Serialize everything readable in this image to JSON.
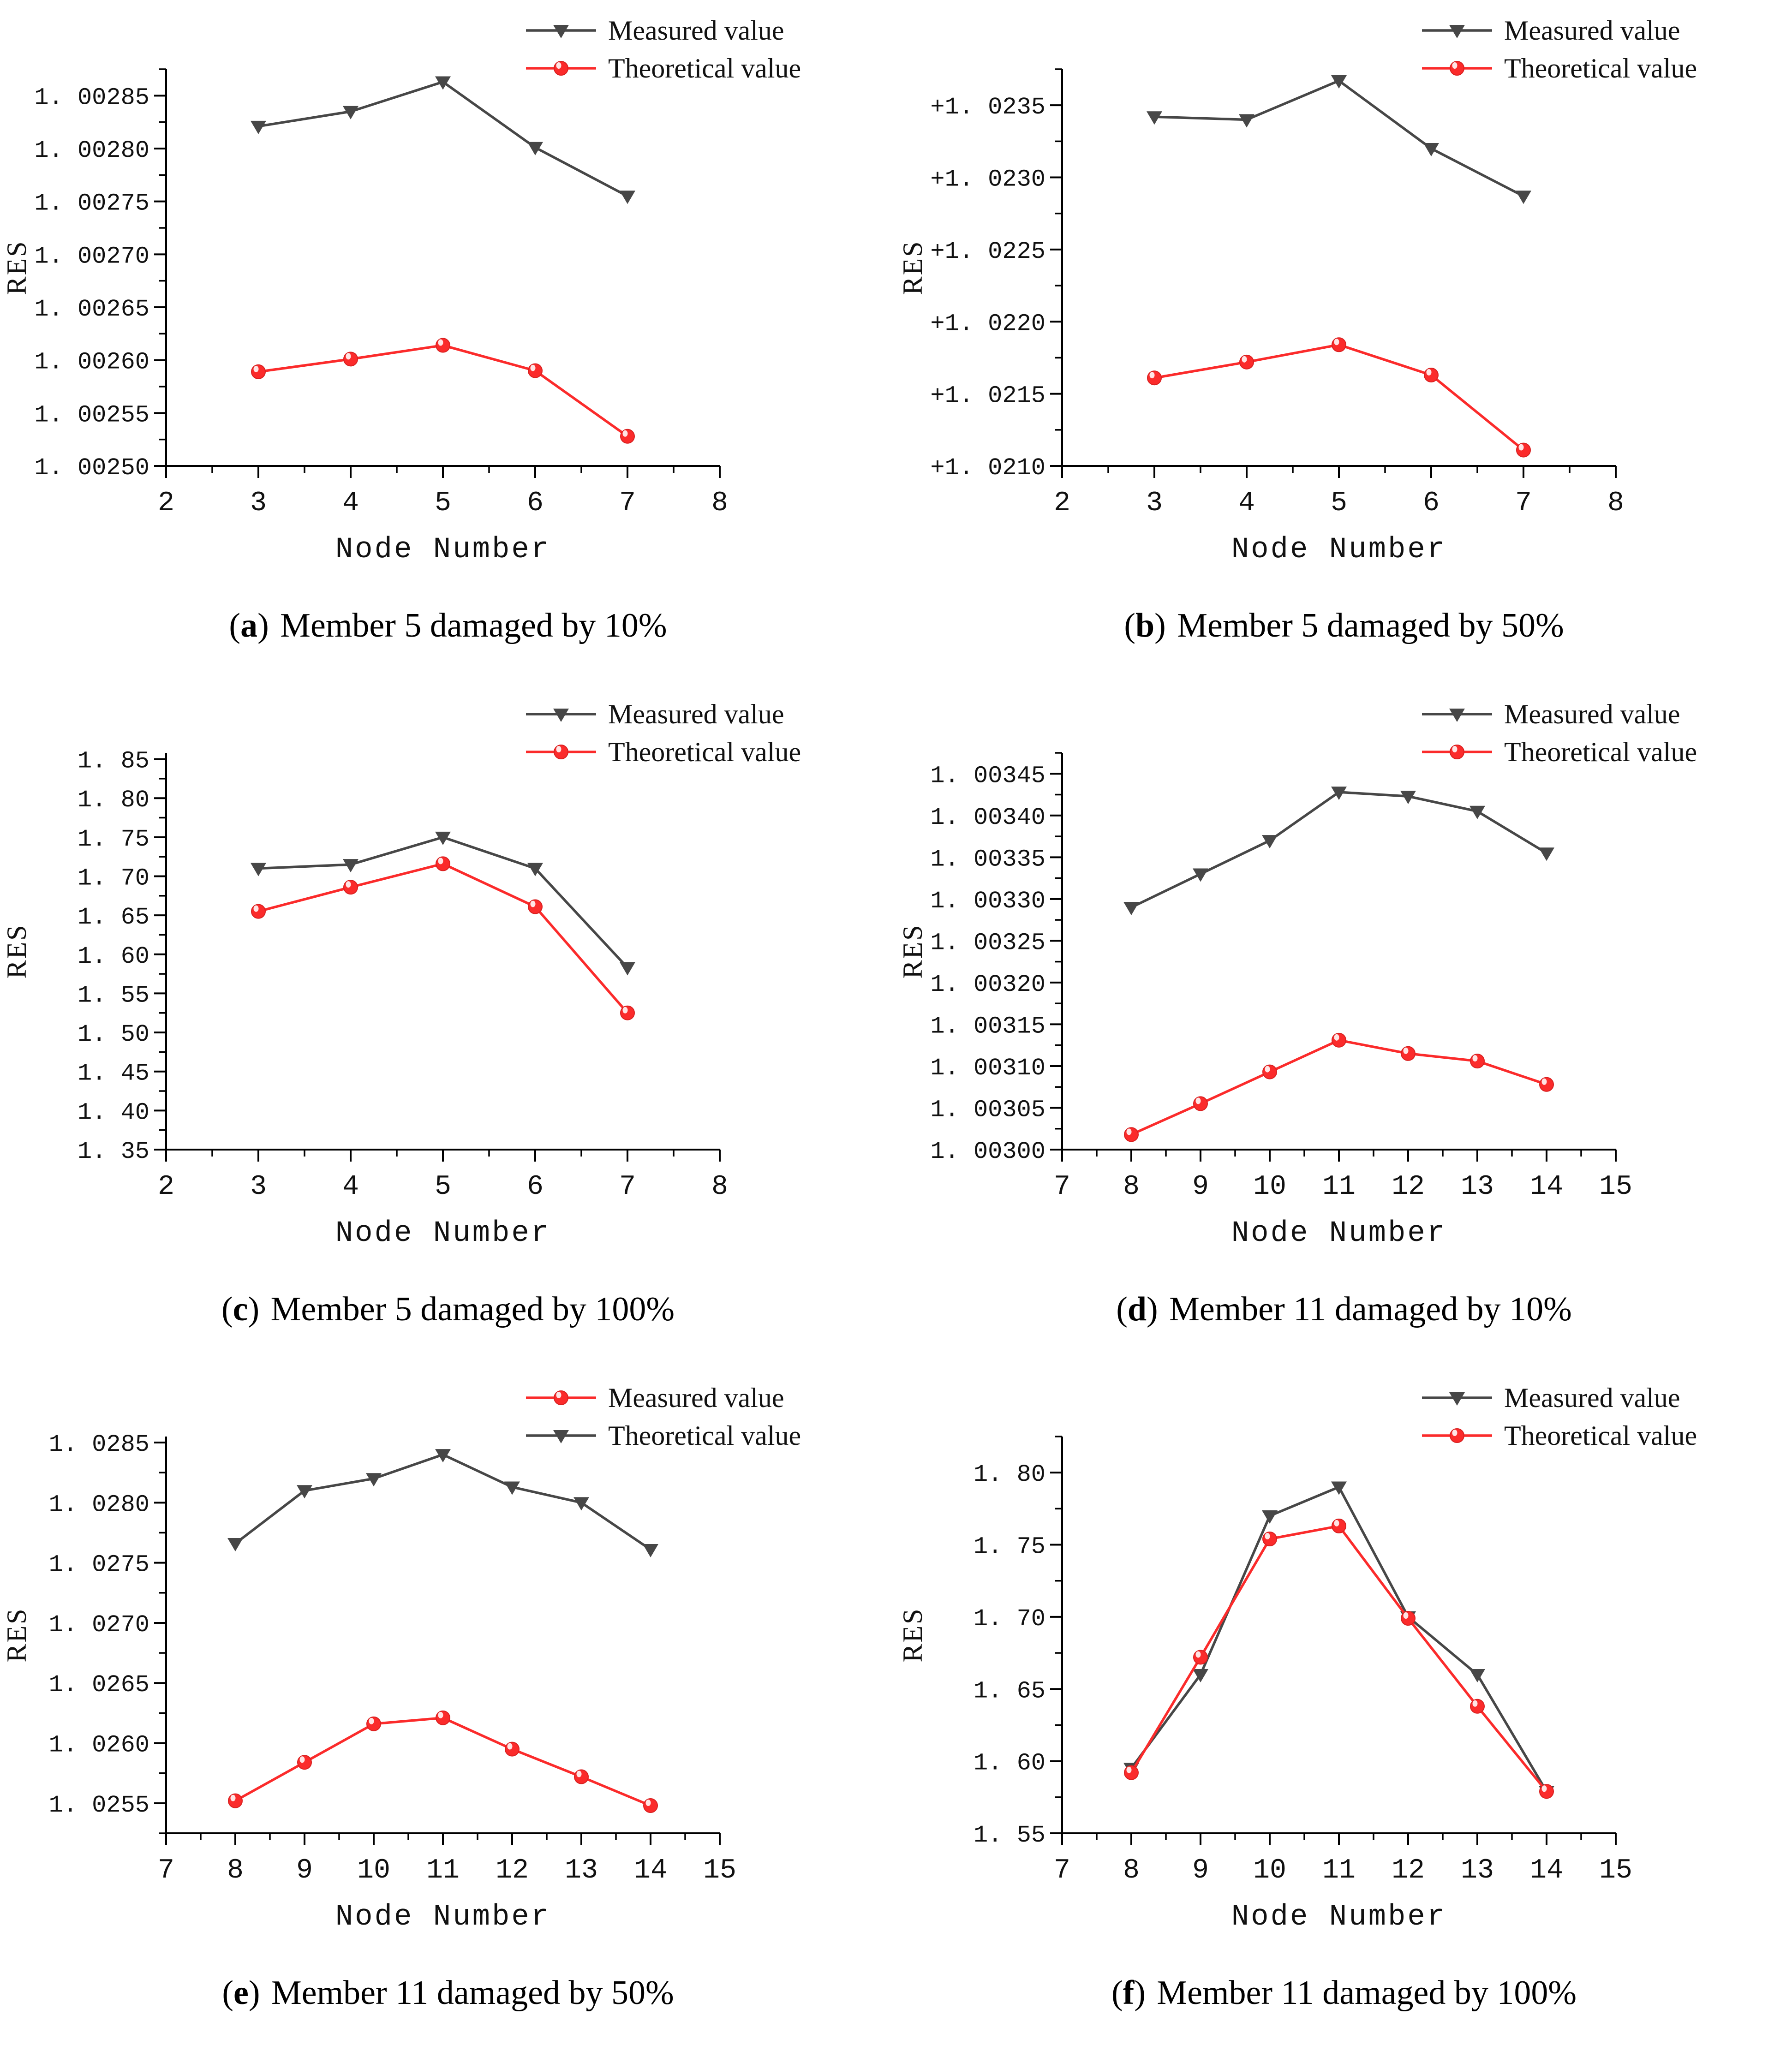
{
  "caption_format": {
    "open": "(",
    "close": ")"
  },
  "legend_labels": [
    "Measured value",
    "Theoretical value"
  ],
  "colors": {
    "measured_dark": "#474747",
    "theoretical_red": "#fb2b2b",
    "axis": "#000000"
  },
  "chart_data": [
    {
      "id": "a",
      "type": "line",
      "caption_letter": "a",
      "caption_text": "Member 5 damaged by 10%",
      "xlabel": "Node Number",
      "ylabel": "RES",
      "x": [
        3,
        4,
        5,
        6,
        7
      ],
      "xlim": [
        2,
        8
      ],
      "xticks": [
        2,
        3,
        4,
        5,
        6,
        7,
        8
      ],
      "ylim": [
        1.0025,
        1.002875
      ],
      "yticks": [
        {
          "v": 1.0025,
          "label": "1. 00250"
        },
        {
          "v": 1.00255,
          "label": "1. 00255"
        },
        {
          "v": 1.0026,
          "label": "1. 00260"
        },
        {
          "v": 1.00265,
          "label": "1. 00265"
        },
        {
          "v": 1.0027,
          "label": "1. 00270"
        },
        {
          "v": 1.00275,
          "label": "1. 00275"
        },
        {
          "v": 1.0028,
          "label": "1. 00280"
        },
        {
          "v": 1.00285,
          "label": "1. 00285"
        }
      ],
      "legend_position": "top-right",
      "grid": false,
      "series": [
        {
          "name": "Measured value",
          "marker": "triangle",
          "color": "#474747",
          "values": [
            1.002821,
            1.002835,
            1.002863,
            1.002801,
            1.002755
          ]
        },
        {
          "name": "Theoretical value",
          "marker": "ball",
          "color": "#fb2b2b",
          "values": [
            1.002589,
            1.002601,
            1.002614,
            1.00259,
            1.002528
          ]
        }
      ]
    },
    {
      "id": "b",
      "type": "line",
      "caption_letter": "b",
      "caption_text": "Member 5 damaged by 50%",
      "xlabel": "Node Number",
      "ylabel": "RES",
      "x": [
        3,
        4,
        5,
        6,
        7
      ],
      "xlim": [
        2,
        8
      ],
      "xticks": [
        2,
        3,
        4,
        5,
        6,
        7,
        8
      ],
      "ylim": [
        1.021,
        1.02375
      ],
      "yticks": [
        {
          "v": 1.021,
          "label": "+1. 0210"
        },
        {
          "v": 1.0215,
          "label": "+1. 0215"
        },
        {
          "v": 1.022,
          "label": "+1. 0220"
        },
        {
          "v": 1.0225,
          "label": "+1. 0225"
        },
        {
          "v": 1.023,
          "label": "+1. 0230"
        },
        {
          "v": 1.0235,
          "label": "+1. 0235"
        }
      ],
      "legend_position": "top-right",
      "grid": false,
      "series": [
        {
          "name": "Measured value",
          "marker": "triangle",
          "color": "#474747",
          "values": [
            1.02342,
            1.0234,
            1.02367,
            1.0232,
            1.02287
          ]
        },
        {
          "name": "Theoretical value",
          "marker": "ball",
          "color": "#fb2b2b",
          "values": [
            1.02161,
            1.02172,
            1.02184,
            1.02163,
            1.02111
          ]
        }
      ]
    },
    {
      "id": "c",
      "type": "line",
      "caption_letter": "c",
      "caption_text": "Member 5 damaged by 100%",
      "xlabel": "Node Number",
      "ylabel": "RES",
      "x": [
        3,
        4,
        5,
        6,
        7
      ],
      "xlim": [
        2,
        8
      ],
      "xticks": [
        2,
        3,
        4,
        5,
        6,
        7,
        8
      ],
      "ylim": [
        1.35,
        1.858
      ],
      "yticks": [
        {
          "v": 1.35,
          "label": "1. 35"
        },
        {
          "v": 1.4,
          "label": "1. 40"
        },
        {
          "v": 1.45,
          "label": "1. 45"
        },
        {
          "v": 1.5,
          "label": "1. 50"
        },
        {
          "v": 1.55,
          "label": "1. 55"
        },
        {
          "v": 1.6,
          "label": "1. 60"
        },
        {
          "v": 1.65,
          "label": "1. 65"
        },
        {
          "v": 1.7,
          "label": "1. 70"
        },
        {
          "v": 1.75,
          "label": "1. 75"
        },
        {
          "v": 1.8,
          "label": "1. 80"
        },
        {
          "v": 1.85,
          "label": "1. 85"
        }
      ],
      "legend_position": "top-right",
      "grid": false,
      "series": [
        {
          "name": "Measured value",
          "marker": "triangle",
          "color": "#474747",
          "values": [
            1.71,
            1.715,
            1.75,
            1.71,
            1.583
          ]
        },
        {
          "name": "Theoretical value",
          "marker": "ball",
          "color": "#fb2b2b",
          "values": [
            1.655,
            1.686,
            1.716,
            1.661,
            1.525
          ]
        }
      ]
    },
    {
      "id": "d",
      "type": "line",
      "caption_letter": "d",
      "caption_text": "Member 11 damaged by 10%",
      "xlabel": "Node Number",
      "ylabel": "RES",
      "x": [
        8,
        9,
        10,
        11,
        12,
        13,
        14
      ],
      "xlim": [
        7,
        15
      ],
      "xticks": [
        7,
        8,
        9,
        10,
        11,
        12,
        13,
        14,
        15
      ],
      "ylim": [
        1.003,
        1.003475
      ],
      "yticks": [
        {
          "v": 1.003,
          "label": "1. 00300"
        },
        {
          "v": 1.00305,
          "label": "1. 00305"
        },
        {
          "v": 1.0031,
          "label": "1. 00310"
        },
        {
          "v": 1.00315,
          "label": "1. 00315"
        },
        {
          "v": 1.0032,
          "label": "1. 00320"
        },
        {
          "v": 1.00325,
          "label": "1. 00325"
        },
        {
          "v": 1.0033,
          "label": "1. 00330"
        },
        {
          "v": 1.00335,
          "label": "1. 00335"
        },
        {
          "v": 1.0034,
          "label": "1. 00340"
        },
        {
          "v": 1.00345,
          "label": "1. 00345"
        }
      ],
      "legend_position": "top-right",
      "grid": false,
      "series": [
        {
          "name": "Measured value",
          "marker": "triangle",
          "color": "#474747",
          "values": [
            1.00329,
            1.00333,
            1.00337,
            1.003428,
            1.003423,
            1.003405,
            1.003355
          ]
        },
        {
          "name": "Theoretical value",
          "marker": "ball",
          "color": "#fb2b2b",
          "values": [
            1.003018,
            1.003055,
            1.003093,
            1.003131,
            1.003115,
            1.003106,
            1.003078
          ]
        }
      ]
    },
    {
      "id": "e",
      "type": "line",
      "caption_letter": "e",
      "caption_text": "Member 11 damaged by 50%",
      "xlabel": "Node Number",
      "ylabel": "RES",
      "x": [
        8,
        9,
        10,
        11,
        12,
        13,
        14
      ],
      "xlim": [
        7,
        15
      ],
      "xticks": [
        7,
        8,
        9,
        10,
        11,
        12,
        13,
        14,
        15
      ],
      "ylim": [
        1.02525,
        1.02855
      ],
      "yticks": [
        {
          "v": 1.0255,
          "label": "1. 0255"
        },
        {
          "v": 1.026,
          "label": "1. 0260"
        },
        {
          "v": 1.0265,
          "label": "1. 0265"
        },
        {
          "v": 1.027,
          "label": "1. 0270"
        },
        {
          "v": 1.0275,
          "label": "1. 0275"
        },
        {
          "v": 1.028,
          "label": "1. 0280"
        },
        {
          "v": 1.0285,
          "label": "1. 0285"
        }
      ],
      "legend_position": "top-right",
      "grid": false,
      "series": [
        {
          "name": "Measured value",
          "marker": "ball",
          "color": "#fb2b2b",
          "values": [
            1.02552,
            1.02584,
            1.02616,
            1.02621,
            1.02595,
            1.02572,
            1.02548
          ]
        },
        {
          "name": "Theoretical value",
          "marker": "triangle",
          "color": "#474747",
          "values": [
            1.02766,
            1.0281,
            1.0282,
            1.0284,
            1.02813,
            1.028,
            1.02761
          ]
        }
      ]
    },
    {
      "id": "f",
      "type": "line",
      "caption_letter": "f",
      "caption_text": "Member 11 damaged by 100%",
      "xlabel": "Node Number",
      "ylabel": "RES",
      "x": [
        8,
        9,
        10,
        11,
        12,
        13,
        14
      ],
      "xlim": [
        7,
        15
      ],
      "xticks": [
        7,
        8,
        9,
        10,
        11,
        12,
        13,
        14,
        15
      ],
      "ylim": [
        1.55,
        1.825
      ],
      "yticks": [
        {
          "v": 1.55,
          "label": "1. 55"
        },
        {
          "v": 1.6,
          "label": "1. 60"
        },
        {
          "v": 1.65,
          "label": "1. 65"
        },
        {
          "v": 1.7,
          "label": "1. 70"
        },
        {
          "v": 1.75,
          "label": "1. 75"
        },
        {
          "v": 1.8,
          "label": "1. 80"
        }
      ],
      "legend_position": "top-right",
      "grid": false,
      "series": [
        {
          "name": "Measured value",
          "marker": "triangle",
          "color": "#474747",
          "values": [
            1.595,
            1.66,
            1.77,
            1.79,
            1.7,
            1.66,
            1.579
          ]
        },
        {
          "name": "Theoretical value",
          "marker": "ball",
          "color": "#fb2b2b",
          "values": [
            1.592,
            1.672,
            1.754,
            1.763,
            1.699,
            1.638,
            1.579
          ]
        }
      ]
    }
  ]
}
